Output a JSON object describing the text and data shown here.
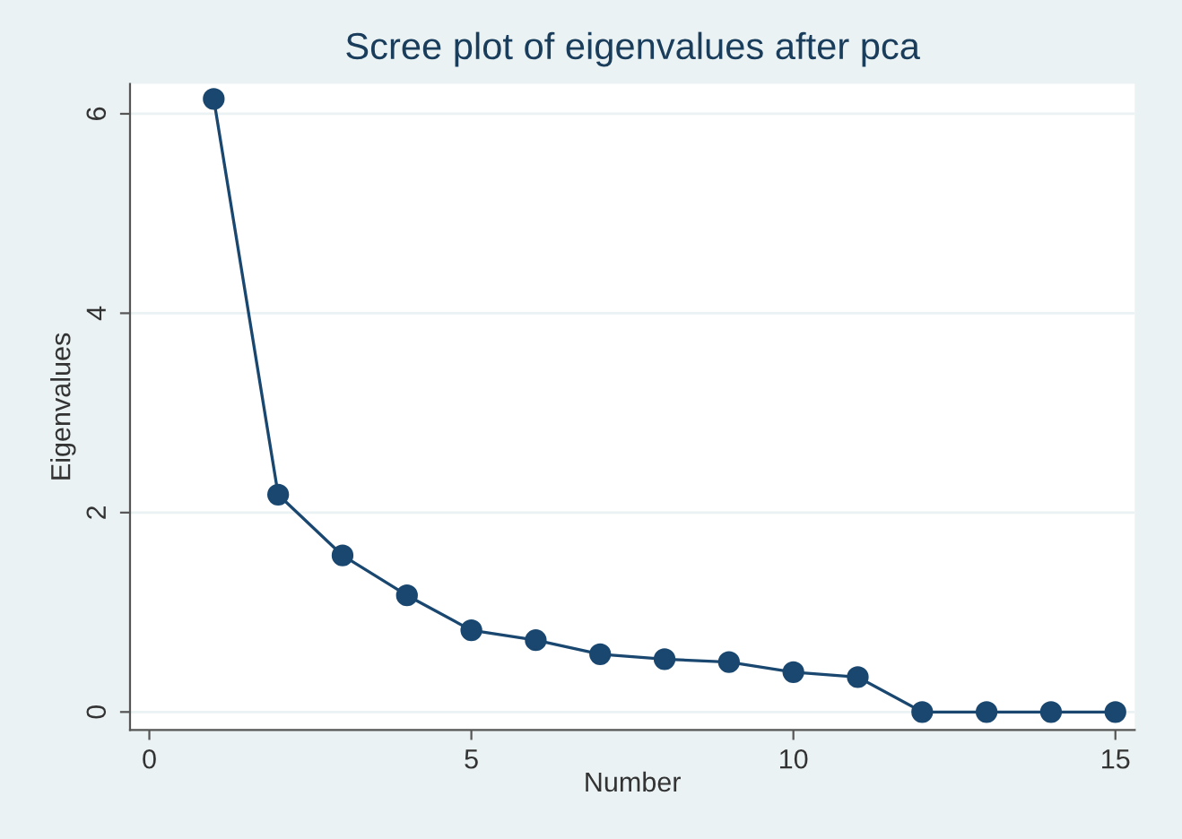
{
  "chart_data": {
    "type": "line",
    "title": "Scree plot of eigenvalues after pca",
    "xlabel": "Number",
    "ylabel": "Eigenvalues",
    "x": [
      1,
      2,
      3,
      4,
      5,
      6,
      7,
      8,
      9,
      10,
      11,
      12,
      13,
      14,
      15
    ],
    "series": [
      {
        "color": "#1a476f",
        "values": [
          6.15,
          2.18,
          1.57,
          1.17,
          0.82,
          0.72,
          0.58,
          0.53,
          0.5,
          0.4,
          0.35,
          0,
          0,
          0,
          0
        ]
      }
    ],
    "xlim": [
      -0.3,
      15.3
    ],
    "xticks": [
      0,
      5,
      10,
      15
    ],
    "ylim": [
      -0.18,
      6.3
    ],
    "yticks": [
      0,
      2,
      4,
      6
    ],
    "grid": "y",
    "marker": "circle",
    "line_style": "solid"
  }
}
